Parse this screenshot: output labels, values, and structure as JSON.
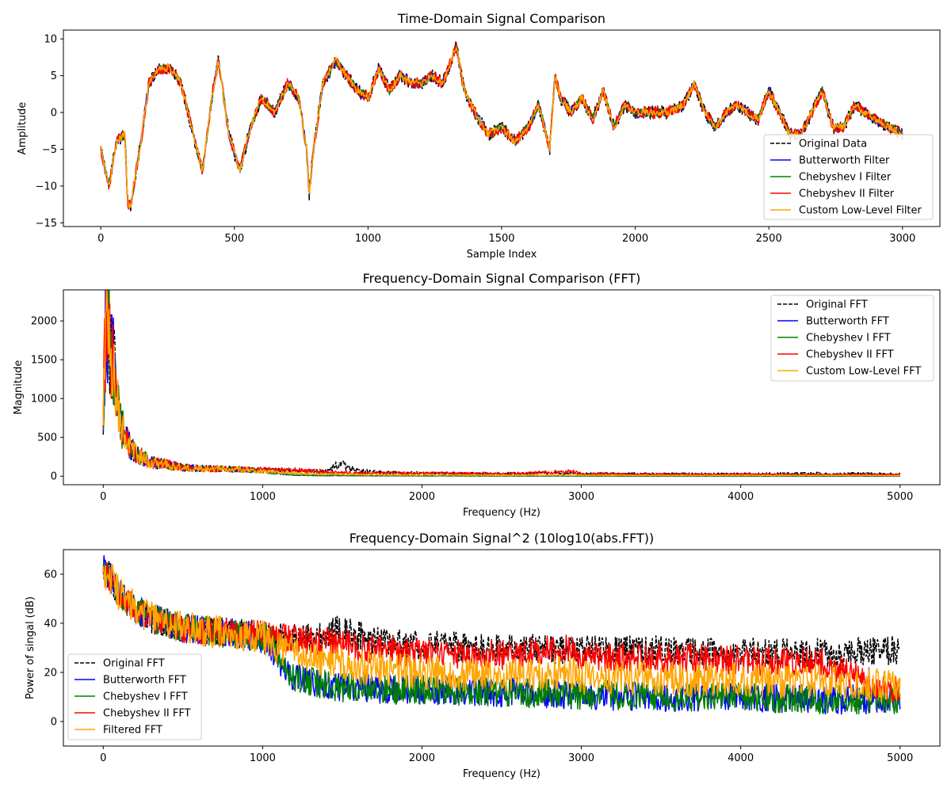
{
  "chart_data": [
    {
      "type": "line",
      "title": "Time-Domain Signal Comparison",
      "xlabel": "Sample Index",
      "ylabel": "Amplitude",
      "xlim": [
        -140,
        3140
      ],
      "ylim": [
        -15.5,
        11.2
      ],
      "x_ticks": [
        0,
        500,
        1000,
        1500,
        2000,
        2500,
        3000
      ],
      "y_ticks": [
        -15,
        -10,
        -5,
        0,
        5,
        10
      ],
      "x_tick_labels": [
        "0",
        "500",
        "1000",
        "1500",
        "2000",
        "2500",
        "3000"
      ],
      "y_tick_labels": [
        "−15",
        "−10",
        "−5",
        "0",
        "5",
        "10"
      ],
      "legend_position": "lower-right",
      "grid": false,
      "x": [
        0,
        30,
        60,
        90,
        100,
        110,
        150,
        180,
        220,
        260,
        300,
        340,
        380,
        420,
        440,
        480,
        520,
        560,
        600,
        650,
        700,
        740,
        770,
        780,
        790,
        830,
        880,
        920,
        960,
        1000,
        1040,
        1080,
        1120,
        1160,
        1200,
        1240,
        1280,
        1330,
        1360,
        1400,
        1450,
        1500,
        1550,
        1600,
        1640,
        1680,
        1700,
        1720,
        1760,
        1800,
        1840,
        1880,
        1920,
        1960,
        2000,
        2060,
        2120,
        2180,
        2220,
        2260,
        2300,
        2340,
        2380,
        2420,
        2460,
        2500,
        2540,
        2580,
        2620,
        2660,
        2700,
        2740,
        2780,
        2820,
        2860,
        2900,
        2950,
        3000
      ],
      "series": [
        {
          "name": "Original Data",
          "color": "#000000",
          "dashed": true,
          "amp_noise": 0.9,
          "values": [
            -5,
            -10,
            -4,
            -3,
            -12,
            -13,
            -4,
            4,
            6,
            6,
            4,
            -2,
            -8,
            3,
            7,
            -3,
            -8,
            -2,
            2,
            0,
            4,
            2,
            -5,
            -11,
            -7,
            4,
            7,
            5,
            3,
            2,
            6,
            3,
            5,
            4,
            4,
            5,
            4,
            9,
            3,
            0,
            -3,
            -2,
            -4,
            -2,
            1,
            -5,
            5,
            2,
            0,
            2,
            -1,
            3,
            -2,
            1,
            0,
            0,
            0,
            1,
            4,
            0,
            -2,
            0,
            1,
            0,
            -1,
            3,
            0,
            -3,
            -3,
            0,
            3,
            -2,
            -2,
            1,
            0,
            -1,
            -2,
            -3
          ]
        },
        {
          "name": "Butterworth Filter",
          "color": "#0000ff",
          "dashed": false,
          "amp_noise": 0.6,
          "values": [
            -5,
            -10,
            -4,
            -3,
            -12,
            -13,
            -4,
            4,
            6,
            6,
            4,
            -2,
            -8,
            3,
            7,
            -3,
            -8,
            -2,
            2,
            0,
            4,
            2,
            -5,
            -11,
            -7,
            4,
            7,
            5,
            3,
            2,
            6,
            3,
            5,
            4,
            4,
            5,
            4,
            9,
            3,
            0,
            -3,
            -2,
            -4,
            -2,
            1,
            -5,
            5,
            2,
            0,
            2,
            -1,
            3,
            -2,
            1,
            0,
            0,
            0,
            1,
            4,
            0,
            -2,
            0,
            1,
            0,
            -1,
            3,
            0,
            -3,
            -3,
            0,
            3,
            -2,
            -2,
            1,
            0,
            -1,
            -2,
            -3
          ]
        },
        {
          "name": "Chebyshev I Filter",
          "color": "#008000",
          "dashed": false,
          "amp_noise": 0.6,
          "values": [
            -5,
            -10,
            -4,
            -3,
            -12,
            -13,
            -4,
            4,
            6,
            6,
            4,
            -2,
            -8,
            3,
            7,
            -3,
            -8,
            -2,
            2,
            0,
            4,
            2,
            -5,
            -11,
            -7,
            4,
            7,
            5,
            3,
            2,
            6,
            3,
            5,
            4,
            4,
            5,
            4,
            9,
            3,
            0,
            -3,
            -2,
            -4,
            -2,
            1,
            -5,
            5,
            2,
            0,
            2,
            -1,
            3,
            -2,
            1,
            0,
            0,
            0,
            1,
            4,
            0,
            -2,
            0,
            1,
            0,
            -1,
            3,
            0,
            -3,
            -3,
            0,
            3,
            -2,
            -2,
            1,
            0,
            -1,
            -2,
            -3
          ]
        },
        {
          "name": "Chebyshev II Filter",
          "color": "#ff0000",
          "dashed": false,
          "amp_noise": 0.8,
          "values": [
            -5,
            -10,
            -4,
            -3,
            -12,
            -13,
            -4,
            4,
            6,
            6,
            4,
            -2,
            -8,
            3,
            7,
            -3,
            -8,
            -2,
            2,
            0,
            4,
            2,
            -5,
            -11,
            -7,
            4,
            7,
            5,
            3,
            2,
            6,
            3,
            5,
            4,
            4,
            5,
            4,
            9,
            3,
            0,
            -3,
            -2,
            -4,
            -2,
            1,
            -5,
            5,
            2,
            0,
            2,
            -1,
            3,
            -2,
            1,
            0,
            0,
            0,
            1,
            4,
            0,
            -2,
            0,
            1,
            0,
            -1,
            3,
            0,
            -3,
            -3,
            0,
            3,
            -2,
            -2,
            1,
            0,
            -1,
            -2,
            -3
          ]
        },
        {
          "name": "Custom Low-Level Filter",
          "color": "#ffa500",
          "dashed": false,
          "amp_noise": 0.5,
          "values": [
            -5,
            -10,
            -4,
            -3,
            -12,
            -13,
            -4,
            4,
            6,
            6,
            4,
            -2,
            -8,
            3,
            7,
            -3,
            -8,
            -2,
            2,
            0,
            4,
            2,
            -5,
            -11,
            -7,
            4,
            7,
            5,
            3,
            2,
            6,
            3,
            5,
            4,
            4,
            5,
            4,
            9,
            3,
            0,
            -3,
            -2,
            -4,
            -2,
            1,
            -5,
            5,
            2,
            0,
            2,
            -1,
            3,
            -2,
            1,
            0,
            0,
            0,
            1,
            4,
            0,
            -2,
            0,
            1,
            0,
            -1,
            3,
            0,
            -3,
            -3,
            0,
            3,
            -2,
            -2,
            1,
            0,
            -1,
            -2,
            -3
          ]
        }
      ]
    },
    {
      "type": "line",
      "title": "Frequency-Domain Signal Comparison (FFT)",
      "xlabel": "Frequency (Hz)",
      "ylabel": "Magnitude",
      "xlim": [
        -250,
        5250
      ],
      "ylim": [
        -110,
        2400
      ],
      "x_ticks": [
        0,
        1000,
        2000,
        3000,
        4000,
        5000
      ],
      "y_ticks": [
        0,
        500,
        1000,
        1500,
        2000
      ],
      "x_tick_labels": [
        "0",
        "1000",
        "2000",
        "3000",
        "4000",
        "5000"
      ],
      "y_tick_labels": [
        "0",
        "500",
        "1000",
        "1500",
        "2000"
      ],
      "legend_position": "upper-right",
      "grid": false,
      "x": [
        0,
        20,
        40,
        60,
        80,
        100,
        150,
        200,
        300,
        400,
        500,
        600,
        800,
        1000,
        1100,
        1200,
        1300,
        1400,
        1480,
        1600,
        1700,
        1800,
        2000,
        2500,
        2950,
        3000,
        3500,
        4000,
        4500,
        5000
      ],
      "series": [
        {
          "name": "Original FFT",
          "color": "#000000",
          "dashed": true,
          "amp_noise": 0.45,
          "values": [
            900,
            2200,
            1800,
            1500,
            1200,
            700,
            450,
            300,
            180,
            150,
            110,
            100,
            90,
            80,
            75,
            70,
            65,
            60,
            150,
            70,
            55,
            45,
            40,
            35,
            45,
            35,
            30,
            30,
            35,
            30
          ]
        },
        {
          "name": "Butterworth FFT",
          "color": "#0000ff",
          "dashed": false,
          "amp_noise": 0.45,
          "values": [
            900,
            2200,
            1800,
            1500,
            1200,
            700,
            450,
            300,
            180,
            150,
            110,
            100,
            90,
            70,
            30,
            15,
            10,
            8,
            8,
            6,
            5,
            5,
            4,
            3,
            3,
            3,
            2,
            2,
            2,
            2
          ]
        },
        {
          "name": "Chebyshev I FFT",
          "color": "#008000",
          "dashed": false,
          "amp_noise": 0.45,
          "values": [
            900,
            2200,
            1800,
            1500,
            1200,
            700,
            450,
            300,
            180,
            150,
            110,
            100,
            90,
            75,
            35,
            15,
            10,
            8,
            8,
            6,
            5,
            5,
            4,
            3,
            3,
            3,
            2,
            2,
            2,
            2
          ]
        },
        {
          "name": "Chebyshev II FFT",
          "color": "#ff0000",
          "dashed": false,
          "amp_noise": 0.45,
          "values": [
            900,
            2200,
            1800,
            1500,
            1200,
            700,
            450,
            300,
            180,
            150,
            110,
            100,
            90,
            80,
            75,
            75,
            70,
            50,
            45,
            40,
            40,
            40,
            40,
            30,
            60,
            30,
            25,
            25,
            20,
            20
          ]
        },
        {
          "name": "Custom Low-Level FFT",
          "color": "#ffa500",
          "dashed": false,
          "amp_noise": 0.45,
          "values": [
            900,
            2200,
            1800,
            1500,
            1200,
            700,
            450,
            300,
            180,
            150,
            110,
            100,
            90,
            70,
            50,
            40,
            30,
            25,
            22,
            20,
            18,
            16,
            15,
            12,
            12,
            12,
            10,
            10,
            10,
            8
          ]
        }
      ]
    },
    {
      "type": "line",
      "title": "Frequency-Domain Signal^2 (10log10(abs.FFT))",
      "xlabel": "Frequency (Hz)",
      "ylabel": "Power of singal (dB)",
      "xlim": [
        -250,
        5250
      ],
      "ylim": [
        -10,
        70
      ],
      "x_ticks": [
        0,
        1000,
        2000,
        3000,
        4000,
        5000
      ],
      "y_ticks": [
        0,
        20,
        40,
        60
      ],
      "x_tick_labels": [
        "0",
        "1000",
        "2000",
        "3000",
        "4000",
        "5000"
      ],
      "y_tick_labels": [
        "0",
        "20",
        "40",
        "60"
      ],
      "legend_position": "lower-left",
      "grid": false,
      "x": [
        0,
        50,
        100,
        200,
        300,
        400,
        500,
        600,
        800,
        1000,
        1050,
        1100,
        1200,
        1400,
        1480,
        1600,
        1800,
        2000,
        2500,
        2950,
        3000,
        3500,
        4000,
        4500,
        4800,
        5000
      ],
      "series": [
        {
          "name": "Original FFT",
          "color": "#000000",
          "dashed": true,
          "amp_noise": 6,
          "values": [
            62,
            58,
            52,
            46,
            42,
            40,
            38,
            37,
            36,
            35,
            34,
            34,
            34,
            34,
            38,
            35,
            32,
            31,
            30,
            29,
            29,
            29,
            28,
            28,
            29,
            29
          ]
        },
        {
          "name": "Butterworth FFT",
          "color": "#0000ff",
          "dashed": false,
          "amp_noise": 6,
          "values": [
            62,
            58,
            52,
            46,
            42,
            40,
            38,
            37,
            36,
            34,
            30,
            24,
            18,
            15,
            14,
            14,
            13,
            13,
            12,
            11,
            11,
            10,
            10,
            9,
            9,
            9
          ]
        },
        {
          "name": "Chebyshev I FFT",
          "color": "#008000",
          "dashed": false,
          "amp_noise": 6,
          "values": [
            62,
            58,
            52,
            46,
            42,
            40,
            38,
            37,
            36,
            35,
            35,
            26,
            18,
            15,
            14,
            14,
            13,
            13,
            12,
            11,
            11,
            10,
            10,
            9,
            9,
            9
          ]
        },
        {
          "name": "Chebyshev II FFT",
          "color": "#ff0000",
          "dashed": false,
          "amp_noise": 6,
          "values": [
            62,
            58,
            52,
            46,
            42,
            40,
            38,
            37,
            36,
            35,
            34,
            34,
            34,
            32,
            32,
            30,
            29,
            28,
            27,
            30,
            26,
            26,
            25,
            24,
            16,
            12
          ]
        },
        {
          "name": "Filtered FFT",
          "color": "#ffa500",
          "dashed": false,
          "amp_noise": 7,
          "values": [
            62,
            58,
            52,
            46,
            42,
            40,
            38,
            37,
            36,
            34,
            32,
            30,
            28,
            25,
            24,
            22,
            21,
            20,
            19,
            20,
            18,
            17,
            17,
            16,
            15,
            14
          ]
        }
      ]
    }
  ]
}
